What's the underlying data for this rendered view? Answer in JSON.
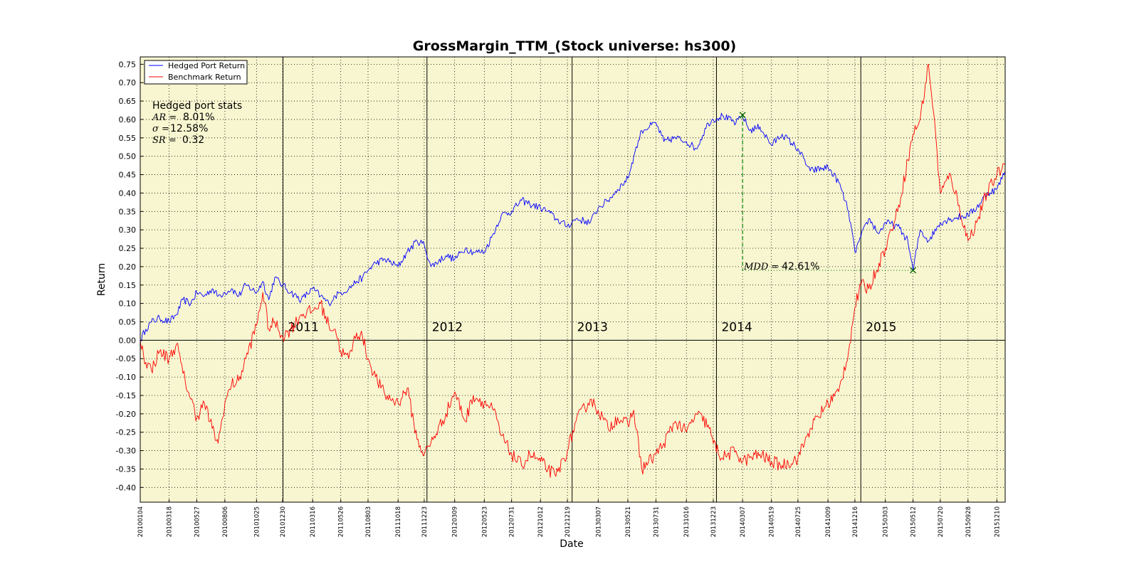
{
  "chart_data": {
    "type": "line",
    "title": "GrossMargin_TTM_(Stock universe: hs300)",
    "xlabel": "Date",
    "ylabel": "Return",
    "ylim": [
      -0.44,
      0.77
    ],
    "grid": true,
    "legend_position": "top-left",
    "background_color": "#f8f6d0",
    "yticks": [
      "0.75",
      "0.70",
      "0.65",
      "0.60",
      "0.55",
      "0.50",
      "0.45",
      "0.40",
      "0.35",
      "0.30",
      "0.25",
      "0.20",
      "0.15",
      "0.10",
      "0.05",
      "0.00",
      "-0.05",
      "-0.10",
      "-0.15",
      "-0.20",
      "-0.25",
      "-0.30",
      "-0.35",
      "-0.40"
    ],
    "xticks": [
      "20100104",
      "20100318",
      "20100527",
      "20100806",
      "20101025",
      "20101230",
      "20110316",
      "20110526",
      "20110803",
      "20111018",
      "20111223",
      "20120309",
      "20120523",
      "20120731",
      "20121012",
      "20121219",
      "20130307",
      "20130521",
      "20130731",
      "20131016",
      "20131223",
      "20140307",
      "20140519",
      "20140725",
      "20141009",
      "20141216",
      "20150303",
      "20150512",
      "20150720",
      "20150928",
      "20151210"
    ],
    "year_markers": [
      {
        "label": "2011",
        "date": "20101231"
      },
      {
        "label": "2012",
        "date": "20111230"
      },
      {
        "label": "2013",
        "date": "20121231"
      },
      {
        "label": "2014",
        "date": "20131231"
      },
      {
        "label": "2015",
        "date": "20141231"
      }
    ],
    "series": [
      {
        "name": "Hedged Port Return",
        "color": "#0000ff",
        "points": [
          [
            "20100104",
            0.0
          ],
          [
            "20100118",
            0.03
          ],
          [
            "20100201",
            0.05
          ],
          [
            "20100222",
            0.06
          ],
          [
            "20100318",
            0.05
          ],
          [
            "20100406",
            0.07
          ],
          [
            "20100422",
            0.11
          ],
          [
            "20100512",
            0.1
          ],
          [
            "20100527",
            0.13
          ],
          [
            "20100615",
            0.12
          ],
          [
            "20100705",
            0.14
          ],
          [
            "20100720",
            0.12
          ],
          [
            "20100806",
            0.13
          ],
          [
            "20100823",
            0.14
          ],
          [
            "20100910",
            0.12
          ],
          [
            "20100928",
            0.15
          ],
          [
            "20101025",
            0.13
          ],
          [
            "20101110",
            0.16
          ],
          [
            "20101125",
            0.11
          ],
          [
            "20101210",
            0.17
          ],
          [
            "20101230",
            0.15
          ],
          [
            "20110120",
            0.13
          ],
          [
            "20110215",
            0.11
          ],
          [
            "20110316",
            0.14
          ],
          [
            "20110405",
            0.12
          ],
          [
            "20110426",
            0.1
          ],
          [
            "20110512",
            0.12
          ],
          [
            "20110526",
            0.13
          ],
          [
            "20110615",
            0.14
          ],
          [
            "20110705",
            0.16
          ],
          [
            "20110720",
            0.17
          ],
          [
            "20110803",
            0.19
          ],
          [
            "20110822",
            0.21
          ],
          [
            "20110915",
            0.22
          ],
          [
            "20111018",
            0.2
          ],
          [
            "20111110",
            0.24
          ],
          [
            "20111205",
            0.27
          ],
          [
            "20111223",
            0.26
          ],
          [
            "20120109",
            0.2
          ],
          [
            "20120216",
            0.23
          ],
          [
            "20120309",
            0.22
          ],
          [
            "20120405",
            0.25
          ],
          [
            "20120425",
            0.24
          ],
          [
            "20120523",
            0.24
          ],
          [
            "20120615",
            0.29
          ],
          [
            "20120705",
            0.34
          ],
          [
            "20120731",
            0.35
          ],
          [
            "20120825",
            0.38
          ],
          [
            "20120915",
            0.37
          ],
          [
            "20121012",
            0.36
          ],
          [
            "20121031",
            0.35
          ],
          [
            "20121120",
            0.33
          ],
          [
            "20121219",
            0.31
          ],
          [
            "20130110",
            0.33
          ],
          [
            "20130215",
            0.32
          ],
          [
            "20130307",
            0.36
          ],
          [
            "20130401",
            0.38
          ],
          [
            "20130425",
            0.41
          ],
          [
            "20130521",
            0.44
          ],
          [
            "20130605",
            0.5
          ],
          [
            "20130625",
            0.57
          ],
          [
            "20130731",
            0.59
          ],
          [
            "20130820",
            0.54
          ],
          [
            "20130918",
            0.55
          ],
          [
            "20131016",
            0.54
          ],
          [
            "20131110",
            0.52
          ],
          [
            "20131210",
            0.59
          ],
          [
            "20131223",
            0.6
          ],
          [
            "20140115",
            0.61
          ],
          [
            "20140218",
            0.59
          ],
          [
            "20140307",
            0.61
          ],
          [
            "20140325",
            0.57
          ],
          [
            "20140420",
            0.58
          ],
          [
            "20140519",
            0.53
          ],
          [
            "20140615",
            0.56
          ],
          [
            "20140725",
            0.52
          ],
          [
            "20140825",
            0.46
          ],
          [
            "20141009",
            0.47
          ],
          [
            "20141105",
            0.43
          ],
          [
            "20141130",
            0.35
          ],
          [
            "20141216",
            0.24
          ],
          [
            "20141231",
            0.28
          ],
          [
            "20150120",
            0.33
          ],
          [
            "20150215",
            0.29
          ],
          [
            "20150303",
            0.32
          ],
          [
            "20150403",
            0.31
          ],
          [
            "20150429",
            0.27
          ],
          [
            "20150512",
            0.19
          ],
          [
            "20150530",
            0.3
          ],
          [
            "20150620",
            0.27
          ],
          [
            "20150720",
            0.32
          ],
          [
            "20150815",
            0.33
          ],
          [
            "20150928",
            0.34
          ],
          [
            "20151020",
            0.36
          ],
          [
            "20151115",
            0.4
          ],
          [
            "20151210",
            0.41
          ],
          [
            "20151231",
            0.46
          ]
        ]
      },
      {
        "name": "Benchmark Return",
        "color": "#ff0000",
        "points": [
          [
            "20100104",
            0.0
          ],
          [
            "20100118",
            -0.06
          ],
          [
            "20100201",
            -0.08
          ],
          [
            "20100222",
            -0.03
          ],
          [
            "20100318",
            -0.05
          ],
          [
            "20100406",
            -0.01
          ],
          [
            "20100422",
            -0.09
          ],
          [
            "20100512",
            -0.16
          ],
          [
            "20100527",
            -0.21
          ],
          [
            "20100615",
            -0.17
          ],
          [
            "20100705",
            -0.24
          ],
          [
            "20100720",
            -0.28
          ],
          [
            "20100806",
            -0.17
          ],
          [
            "20100823",
            -0.12
          ],
          [
            "20100910",
            -0.11
          ],
          [
            "20100928",
            -0.05
          ],
          [
            "20101025",
            0.04
          ],
          [
            "20101110",
            0.13
          ],
          [
            "20101125",
            0.03
          ],
          [
            "20101210",
            0.05
          ],
          [
            "20101230",
            0.01
          ],
          [
            "20110120",
            0.03
          ],
          [
            "20110215",
            0.07
          ],
          [
            "20110316",
            0.08
          ],
          [
            "20110405",
            0.1
          ],
          [
            "20110426",
            0.04
          ],
          [
            "20110512",
            0.03
          ],
          [
            "20110526",
            -0.03
          ],
          [
            "20110615",
            -0.05
          ],
          [
            "20110705",
            0.02
          ],
          [
            "20110720",
            0.01
          ],
          [
            "20110803",
            -0.05
          ],
          [
            "20110822",
            -0.1
          ],
          [
            "20110915",
            -0.15
          ],
          [
            "20111018",
            -0.17
          ],
          [
            "20111110",
            -0.13
          ],
          [
            "20111205",
            -0.27
          ],
          [
            "20111223",
            -0.31
          ],
          [
            "20120109",
            -0.28
          ],
          [
            "20120216",
            -0.2
          ],
          [
            "20120309",
            -0.14
          ],
          [
            "20120405",
            -0.22
          ],
          [
            "20120425",
            -0.15
          ],
          [
            "20120523",
            -0.17
          ],
          [
            "20120615",
            -0.19
          ],
          [
            "20120705",
            -0.26
          ],
          [
            "20120731",
            -0.31
          ],
          [
            "20120825",
            -0.34
          ],
          [
            "20120915",
            -0.31
          ],
          [
            "20121012",
            -0.33
          ],
          [
            "20121031",
            -0.35
          ],
          [
            "20121120",
            -0.37
          ],
          [
            "20121219",
            -0.3
          ],
          [
            "20130110",
            -0.22
          ],
          [
            "20130215",
            -0.16
          ],
          [
            "20130307",
            -0.19
          ],
          [
            "20130401",
            -0.24
          ],
          [
            "20130425",
            -0.21
          ],
          [
            "20130521",
            -0.23
          ],
          [
            "20130605",
            -0.19
          ],
          [
            "20130625",
            -0.35
          ],
          [
            "20130731",
            -0.31
          ],
          [
            "20130820",
            -0.28
          ],
          [
            "20130918",
            -0.22
          ],
          [
            "20131016",
            -0.25
          ],
          [
            "20131110",
            -0.2
          ],
          [
            "20131210",
            -0.23
          ],
          [
            "20131223",
            -0.28
          ],
          [
            "20140115",
            -0.32
          ],
          [
            "20140218",
            -0.3
          ],
          [
            "20140307",
            -0.33
          ],
          [
            "20140325",
            -0.32
          ],
          [
            "20140420",
            -0.31
          ],
          [
            "20140519",
            -0.33
          ],
          [
            "20140615",
            -0.34
          ],
          [
            "20140725",
            -0.32
          ],
          [
            "20140825",
            -0.24
          ],
          [
            "20141009",
            -0.17
          ],
          [
            "20141105",
            -0.14
          ],
          [
            "20141130",
            -0.03
          ],
          [
            "20141216",
            0.09
          ],
          [
            "20141231",
            0.15
          ],
          [
            "20150120",
            0.14
          ],
          [
            "20150215",
            0.21
          ],
          [
            "20150303",
            0.25
          ],
          [
            "20150403",
            0.35
          ],
          [
            "20150429",
            0.49
          ],
          [
            "20150512",
            0.56
          ],
          [
            "20150530",
            0.6
          ],
          [
            "20150620",
            0.75
          ],
          [
            "20150703",
            0.62
          ],
          [
            "20150720",
            0.4
          ],
          [
            "20150815",
            0.45
          ],
          [
            "20150928",
            0.27
          ],
          [
            "20151020",
            0.32
          ],
          [
            "20151115",
            0.4
          ],
          [
            "20151210",
            0.45
          ],
          [
            "20151231",
            0.48
          ]
        ]
      }
    ],
    "mdd": {
      "peak": {
        "date": "20140307",
        "value": 0.612
      },
      "trough": {
        "date": "20150512",
        "value": 0.19
      },
      "label_sym": "MDD =",
      "label_value": "42.61%"
    },
    "stats": {
      "title": "Hedged port stats",
      "rows": [
        {
          "sym": "AR =",
          "value": "8.01%"
        },
        {
          "sym": "σ =",
          "value": "12.58%"
        },
        {
          "sym": "SR =",
          "value": "0.32"
        }
      ]
    }
  }
}
